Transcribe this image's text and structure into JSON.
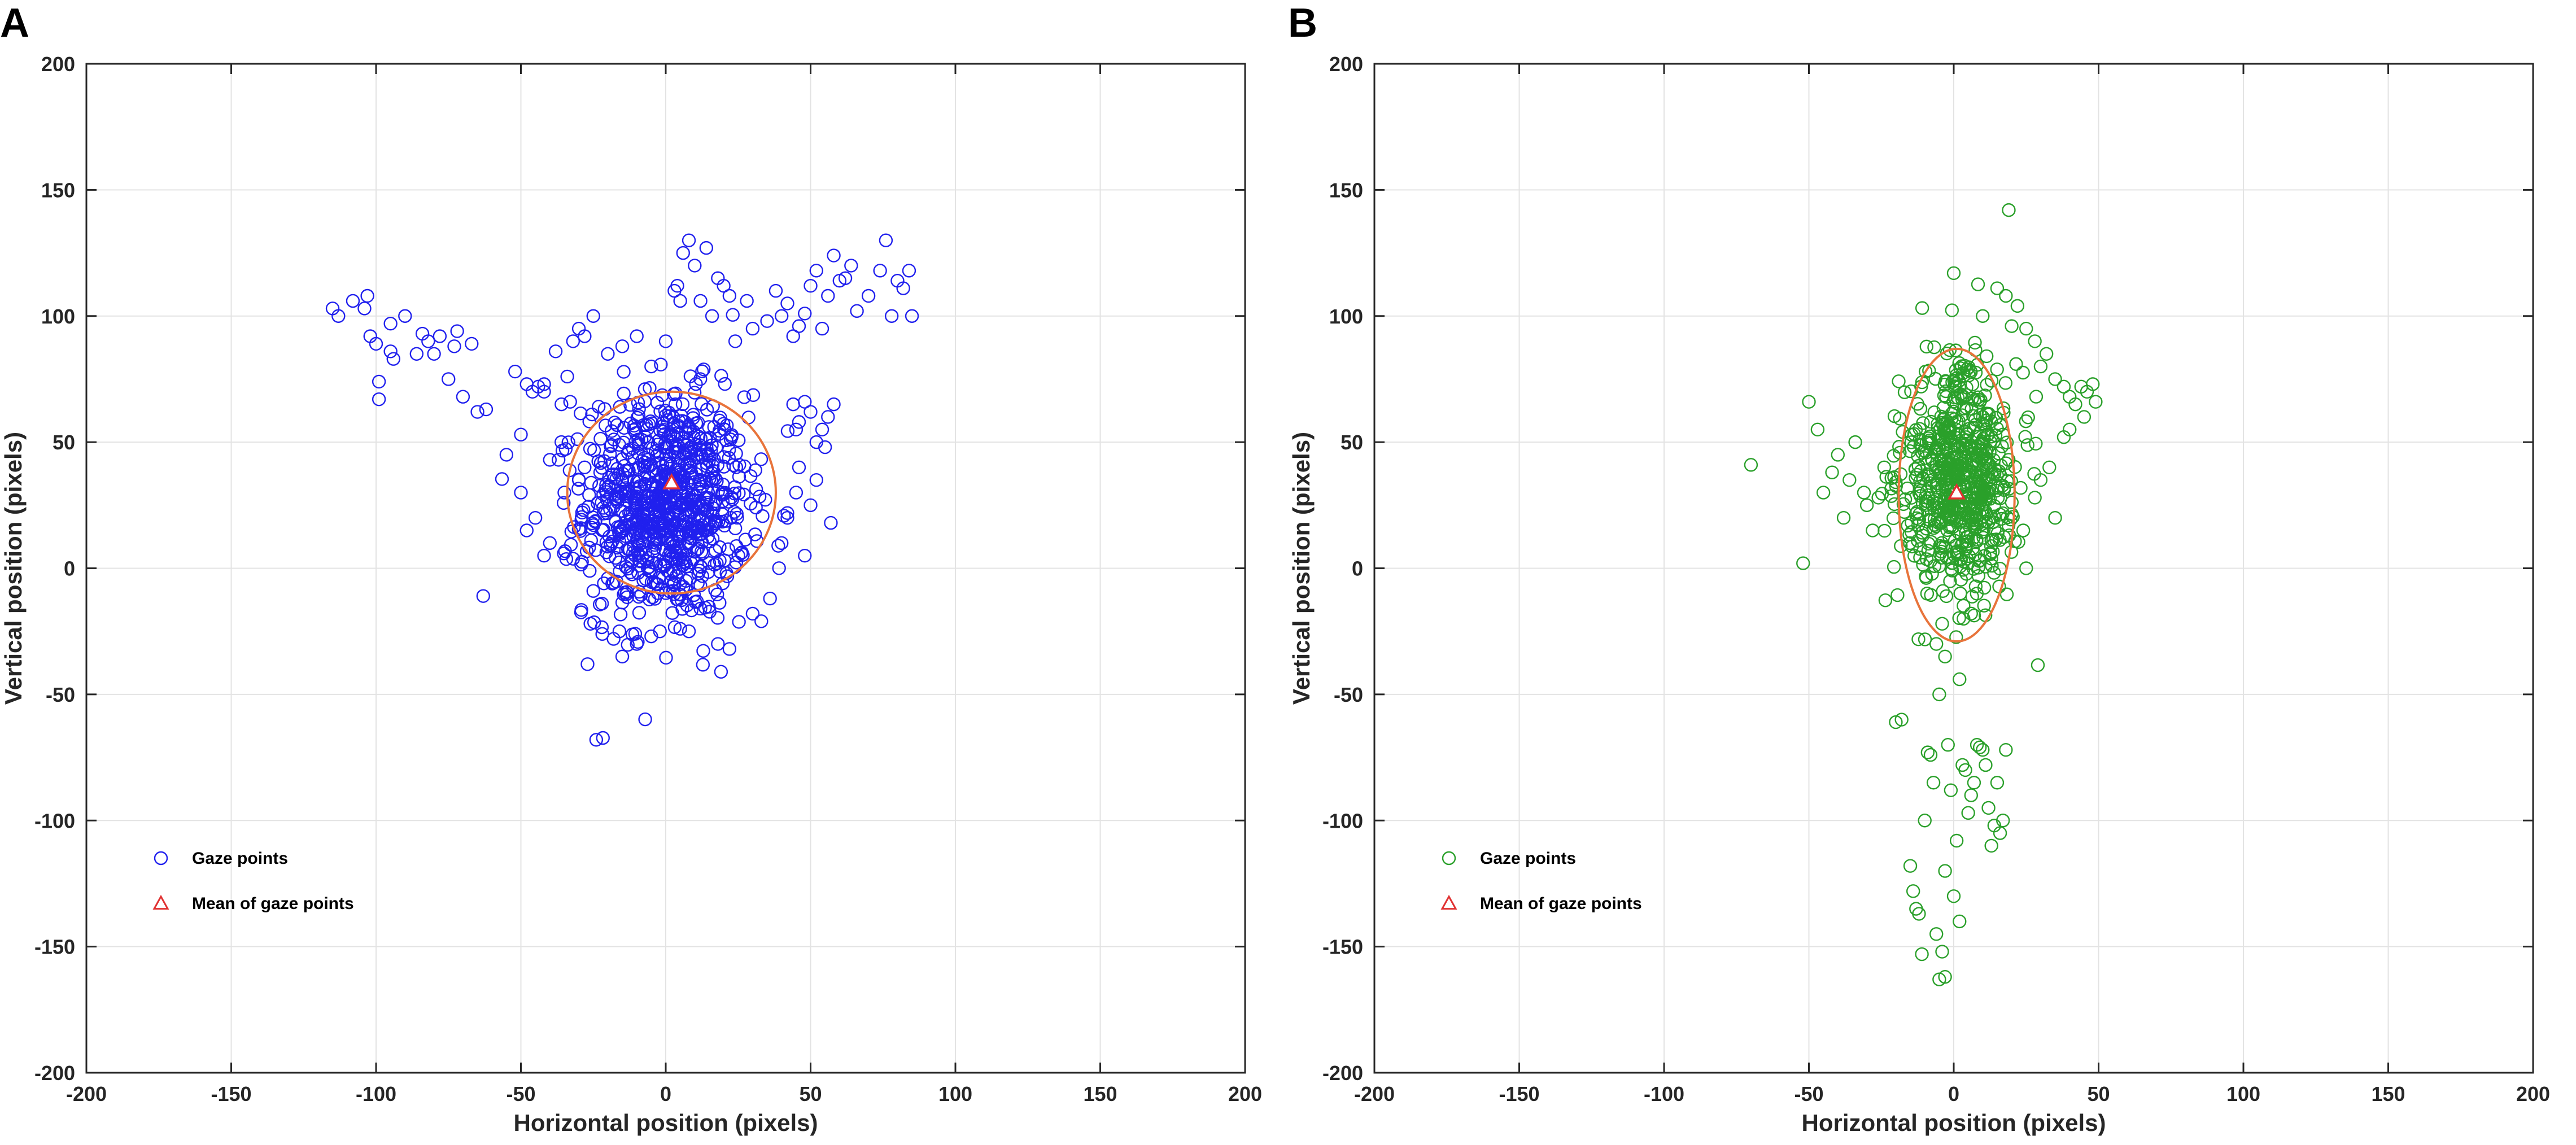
{
  "chart_data": [
    {
      "panel": "A",
      "type": "scatter",
      "xlabel": "Horizontal position (pixels)",
      "ylabel": "Vertical position (pixels)",
      "xlim": [
        -200,
        200
      ],
      "ylim": [
        -200,
        200
      ],
      "xticks": [
        -200,
        -150,
        -100,
        -50,
        0,
        50,
        100,
        150,
        200
      ],
      "yticks": [
        -200,
        -150,
        -100,
        -50,
        0,
        50,
        100,
        150,
        200
      ],
      "grid": true,
      "marker_color": "#2020ee",
      "ellipse_color": "#e8743b",
      "mean_color": "#e03030",
      "legend": {
        "position": "bottom-left",
        "entries": [
          "Gaze points",
          "Mean of gaze points"
        ]
      },
      "mean": [
        2,
        34
      ],
      "ellipse": {
        "cx": 2,
        "cy": 30,
        "rx": 36,
        "ry": 40
      },
      "points": [
        [
          -115,
          103
        ],
        [
          -113,
          100
        ],
        [
          -108,
          106
        ],
        [
          -104,
          103
        ],
        [
          -103,
          108
        ],
        [
          -102,
          92
        ],
        [
          -100,
          89
        ],
        [
          -99,
          74
        ],
        [
          -99,
          67
        ],
        [
          -95,
          86
        ],
        [
          -94,
          83
        ],
        [
          -95,
          97
        ],
        [
          -90,
          100
        ],
        [
          -86,
          85
        ],
        [
          -84,
          93
        ],
        [
          -82,
          90
        ],
        [
          -80,
          85
        ],
        [
          -78,
          92
        ],
        [
          -75,
          75
        ],
        [
          -72,
          94
        ],
        [
          -73,
          88
        ],
        [
          -70,
          68
        ],
        [
          -67,
          89
        ],
        [
          -65,
          62
        ],
        [
          -62,
          63
        ],
        [
          -63,
          -11
        ],
        [
          -52,
          78
        ],
        [
          -50,
          53
        ],
        [
          -48,
          73
        ],
        [
          -46,
          70
        ],
        [
          -44,
          72
        ],
        [
          -42,
          73
        ],
        [
          -42,
          70
        ],
        [
          -40,
          43
        ],
        [
          -38,
          86
        ],
        [
          -36,
          65
        ],
        [
          -37,
          43
        ],
        [
          -34,
          76
        ],
        [
          -33,
          66
        ],
        [
          -32,
          90
        ],
        [
          -30,
          95
        ],
        [
          -28,
          92
        ],
        [
          -27,
          -38
        ],
        [
          -26,
          -22
        ],
        [
          -25,
          -9
        ],
        [
          -22,
          -14
        ],
        [
          -20,
          -4
        ],
        [
          -24,
          -68
        ],
        [
          -18,
          -28
        ],
        [
          -16,
          -25
        ],
        [
          -15,
          -35
        ],
        [
          -10,
          -30
        ],
        [
          -5,
          -27
        ],
        [
          -2,
          -25
        ],
        [
          5,
          -24
        ],
        [
          8,
          -25
        ],
        [
          12,
          -16
        ],
        [
          18,
          -30
        ],
        [
          22,
          -32
        ],
        [
          30,
          -18
        ],
        [
          33,
          -21
        ],
        [
          36,
          -12
        ],
        [
          -25,
          100
        ],
        [
          -20,
          85
        ],
        [
          -15,
          88
        ],
        [
          -10,
          92
        ],
        [
          -5,
          80
        ],
        [
          0,
          90
        ],
        [
          3,
          110
        ],
        [
          4,
          112
        ],
        [
          5,
          106
        ],
        [
          6,
          125
        ],
        [
          8,
          130
        ],
        [
          10,
          120
        ],
        [
          12,
          106
        ],
        [
          14,
          127
        ],
        [
          16,
          100
        ],
        [
          18,
          115
        ],
        [
          20,
          112
        ],
        [
          22,
          108
        ],
        [
          28,
          106
        ],
        [
          24,
          90
        ],
        [
          30,
          95
        ],
        [
          35,
          98
        ],
        [
          38,
          110
        ],
        [
          40,
          100
        ],
        [
          42,
          105
        ],
        [
          44,
          92
        ],
        [
          46,
          96
        ],
        [
          48,
          101
        ],
        [
          50,
          112
        ],
        [
          52,
          118
        ],
        [
          54,
          95
        ],
        [
          56,
          108
        ],
        [
          58,
          124
        ],
        [
          60,
          114
        ],
        [
          62,
          115
        ],
        [
          64,
          120
        ],
        [
          66,
          102
        ],
        [
          70,
          108
        ],
        [
          74,
          118
        ],
        [
          76,
          130
        ],
        [
          78,
          100
        ],
        [
          80,
          114
        ],
        [
          82,
          111
        ],
        [
          84,
          118
        ],
        [
          85,
          100
        ],
        [
          44,
          65
        ],
        [
          45,
          55
        ],
        [
          46,
          58
        ],
        [
          48,
          66
        ],
        [
          50,
          62
        ],
        [
          52,
          50
        ],
        [
          54,
          55
        ],
        [
          56,
          60
        ],
        [
          58,
          65
        ],
        [
          55,
          48
        ],
        [
          57,
          18
        ],
        [
          45,
          30
        ],
        [
          42,
          20
        ],
        [
          40,
          10
        ],
        [
          48,
          5
        ],
        [
          50,
          25
        ],
        [
          46,
          40
        ],
        [
          52,
          35
        ],
        [
          -55,
          45
        ],
        [
          -50,
          30
        ],
        [
          -45,
          20
        ],
        [
          -48,
          15
        ],
        [
          -42,
          5
        ],
        [
          -40,
          10
        ],
        [
          -35,
          30
        ],
        [
          -30,
          35
        ],
        [
          -28,
          40
        ]
      ],
      "cluster": {
        "center": [
          0,
          25
        ],
        "spread": [
          14,
          22
        ],
        "count": 900
      }
    },
    {
      "panel": "B",
      "type": "scatter",
      "xlabel": "Horizontal position (pixels)",
      "ylabel": "Vertical position (pixels)",
      "xlim": [
        -200,
        200
      ],
      "ylim": [
        -200,
        200
      ],
      "xticks": [
        -200,
        -150,
        -100,
        -50,
        0,
        50,
        100,
        150,
        200
      ],
      "yticks": [
        -200,
        -150,
        -100,
        -50,
        0,
        50,
        100,
        150,
        200
      ],
      "grid": true,
      "marker_color": "#2aa02a",
      "ellipse_color": "#e8743b",
      "mean_color": "#e03030",
      "legend": {
        "position": "bottom-left",
        "entries": [
          "Gaze points",
          "Mean of gaze points"
        ]
      },
      "mean": [
        1,
        30
      ],
      "ellipse": {
        "cx": 1,
        "cy": 29,
        "rx": 20,
        "ry": 58
      },
      "points": [
        [
          -70,
          41
        ],
        [
          -52,
          2
        ],
        [
          -50,
          66
        ],
        [
          -47,
          55
        ],
        [
          -45,
          30
        ],
        [
          -42,
          38
        ],
        [
          -40,
          45
        ],
        [
          -38,
          20
        ],
        [
          -36,
          35
        ],
        [
          -34,
          50
        ],
        [
          -31,
          30
        ],
        [
          -30,
          25
        ],
        [
          -28,
          15
        ],
        [
          -26,
          28
        ],
        [
          -24,
          40
        ],
        [
          -20,
          -61
        ],
        [
          -18,
          -60
        ],
        [
          -15,
          -118
        ],
        [
          -14,
          -128
        ],
        [
          -13,
          -135
        ],
        [
          -12,
          -137
        ],
        [
          -11,
          -153
        ],
        [
          -10,
          -100
        ],
        [
          -9,
          -73
        ],
        [
          -8,
          -74
        ],
        [
          -7,
          -85
        ],
        [
          -6,
          -145
        ],
        [
          -5,
          -163
        ],
        [
          -4,
          -152
        ],
        [
          -3,
          -162
        ],
        [
          -3,
          -120
        ],
        [
          -2,
          -70
        ],
        [
          -1,
          -88
        ],
        [
          0,
          -130
        ],
        [
          1,
          -108
        ],
        [
          2,
          -140
        ],
        [
          3,
          -78
        ],
        [
          4,
          -80
        ],
        [
          5,
          -97
        ],
        [
          6,
          -90
        ],
        [
          7,
          -85
        ],
        [
          8,
          -70
        ],
        [
          9,
          -71
        ],
        [
          10,
          -72
        ],
        [
          11,
          -78
        ],
        [
          12,
          -95
        ],
        [
          13,
          -110
        ],
        [
          14,
          -102
        ],
        [
          15,
          -85
        ],
        [
          16,
          -105
        ],
        [
          17,
          -100
        ],
        [
          18,
          -72
        ],
        [
          -5,
          -50
        ],
        [
          -3,
          -35
        ],
        [
          -6,
          -30
        ],
        [
          -4,
          -22
        ],
        [
          2,
          -44
        ],
        [
          0,
          117
        ],
        [
          10,
          100
        ],
        [
          15,
          111
        ],
        [
          18,
          108
        ],
        [
          19,
          142
        ],
        [
          22,
          104
        ],
        [
          20,
          96
        ],
        [
          25,
          95
        ],
        [
          28,
          90
        ],
        [
          30,
          80
        ],
        [
          32,
          85
        ],
        [
          35,
          75
        ],
        [
          38,
          72
        ],
        [
          40,
          68
        ],
        [
          42,
          65
        ],
        [
          44,
          72
        ],
        [
          46,
          70
        ],
        [
          48,
          73
        ],
        [
          49,
          66
        ],
        [
          45,
          60
        ],
        [
          40,
          55
        ],
        [
          38,
          52
        ],
        [
          35,
          20
        ],
        [
          30,
          35
        ],
        [
          33,
          40
        ],
        [
          28,
          28
        ],
        [
          25,
          0
        ],
        [
          24,
          15
        ]
      ],
      "cluster": {
        "center": [
          2,
          35
        ],
        "spread": [
          10,
          22
        ],
        "count": 700
      }
    }
  ],
  "panels": [
    {
      "letter": "A"
    },
    {
      "letter": "B"
    }
  ]
}
